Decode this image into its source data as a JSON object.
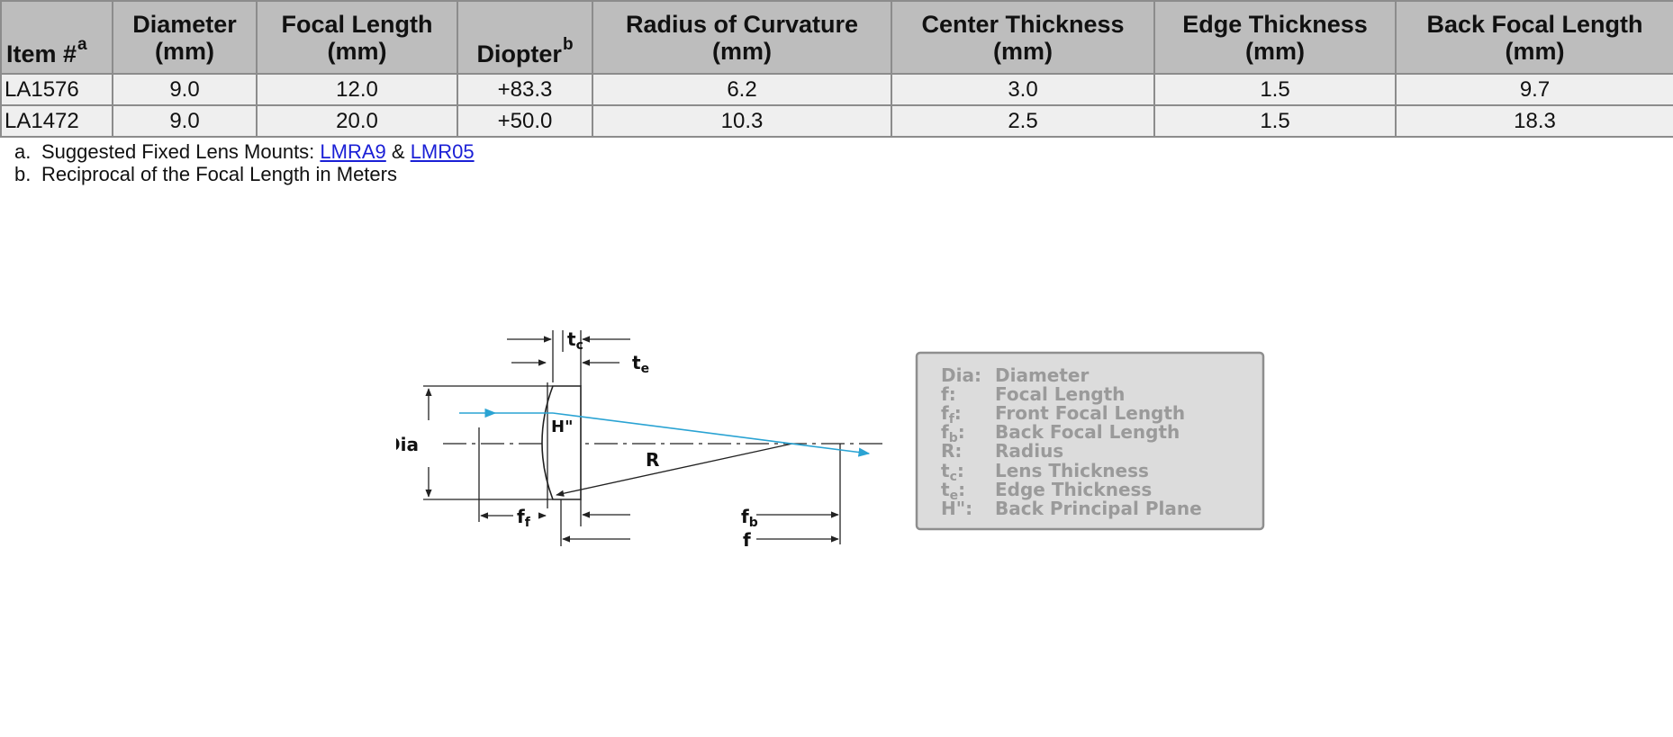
{
  "table": {
    "headers": [
      {
        "line1": "Item #",
        "line2": "",
        "sup": "a"
      },
      {
        "line1": "Diameter",
        "line2": "(mm)",
        "sup": ""
      },
      {
        "line1": "Focal Length",
        "line2": "(mm)",
        "sup": ""
      },
      {
        "line1": "Diopter",
        "line2": "",
        "sup": "b"
      },
      {
        "line1": "Radius of Curvature",
        "line2": "(mm)",
        "sup": ""
      },
      {
        "line1": "Center Thickness",
        "line2": "(mm)",
        "sup": ""
      },
      {
        "line1": "Edge Thickness",
        "line2": "(mm)",
        "sup": ""
      },
      {
        "line1": "Back Focal Length",
        "line2": "(mm)",
        "sup": ""
      }
    ],
    "rows": [
      [
        "LA1576",
        "9.0",
        "12.0",
        "+83.3",
        "6.2",
        "3.0",
        "1.5",
        "9.7"
      ],
      [
        "LA1472",
        "9.0",
        "20.0",
        "+50.0",
        "10.3",
        "2.5",
        "1.5",
        "18.3"
      ]
    ]
  },
  "footnotes": {
    "a": {
      "marker": "a.",
      "text": "Suggested Fixed Lens Mounts: ",
      "link1": "LMRA9",
      "joiner": " & ",
      "link2": "LMR05"
    },
    "b": {
      "marker": "b.",
      "text": "Reciprocal of the Focal Length in Meters"
    }
  },
  "diagram": {
    "labels": {
      "tc": "t",
      "tc_sub": "c",
      "te": "t",
      "te_sub": "e",
      "dia": "Dia",
      "h": "H\"",
      "r": "R",
      "ff": "f",
      "ff_sub": "f",
      "fb": "f",
      "fb_sub": "b",
      "f": "f"
    },
    "legend": [
      {
        "key": "Dia:",
        "sub": "",
        "value": "Diameter"
      },
      {
        "key": "f:",
        "sub": "",
        "value": "Focal Length"
      },
      {
        "key": "f",
        "sub": "f",
        "value": "Front Focal Length"
      },
      {
        "key": "f",
        "sub": "b",
        "value": "Back Focal Length"
      },
      {
        "key": "R:",
        "sub": "",
        "value": "Radius"
      },
      {
        "key": "t",
        "sub": "c",
        "value": "Lens Thickness"
      },
      {
        "key": "t",
        "sub": "e",
        "value": "Edge Thickness"
      },
      {
        "key": "H\":",
        "sub": "",
        "value": "Back Principal Plane"
      }
    ],
    "colors": {
      "ray": "#2aa3d3",
      "lines": "#222222",
      "legend_bg": "#dcdcdc",
      "legend_border": "#8e8e8e",
      "legend_text": "#9a9a9a"
    }
  }
}
